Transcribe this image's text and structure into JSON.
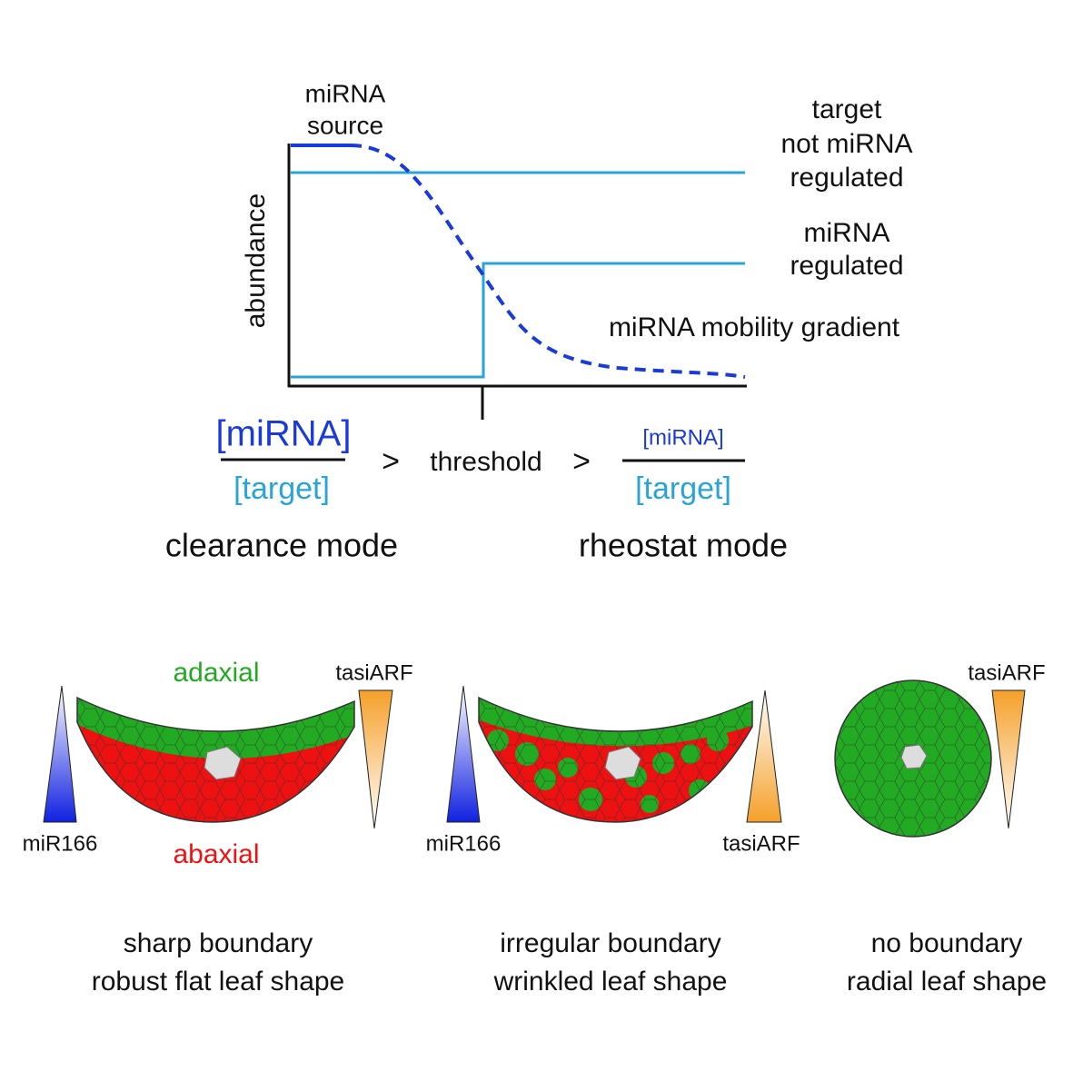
{
  "graph": {
    "source_label": [
      "miRNA",
      "source"
    ],
    "unregulated_label": [
      "target",
      "not miRNA",
      "regulated"
    ],
    "regulated_label": [
      "miRNA",
      "regulated"
    ],
    "gradient_label": "miRNA mobility gradient",
    "y_label": "abundance"
  },
  "relation": {
    "left_numerator": "[miRNA]",
    "left_denominator": "[target]",
    "greater_1": ">",
    "threshold": "threshold",
    "greater_2": ">",
    "right_numerator": "[miRNA]",
    "right_denominator": "[target]",
    "left_mode": "clearance mode",
    "right_mode": "rheostat mode"
  },
  "leaves": [
    {
      "top_label": "adaxial",
      "bottom_label": "abaxial",
      "left_gradient": "miR166",
      "right_gradient": "tasiARF",
      "caption": [
        "sharp boundary",
        "robust flat leaf shape"
      ]
    },
    {
      "left_gradient": "miR166",
      "right_gradient": "tasiARF",
      "caption": [
        "irregular boundary",
        "wrinkled leaf shape"
      ]
    },
    {
      "right_gradient": "tasiARF",
      "caption": [
        "no boundary",
        "radial leaf shape"
      ]
    }
  ]
}
